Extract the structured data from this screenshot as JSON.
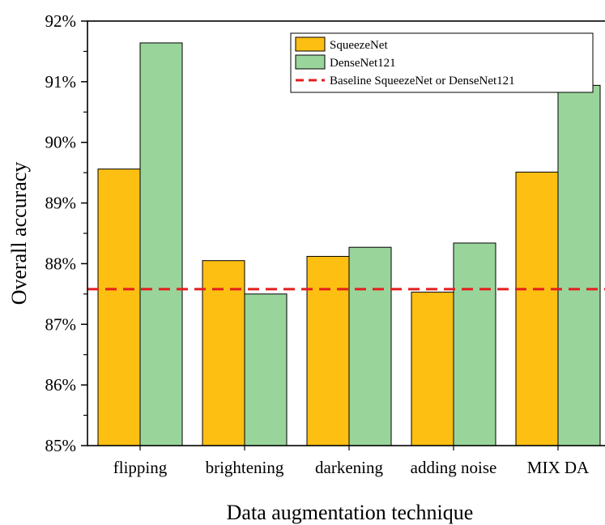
{
  "chart_data": {
    "type": "bar",
    "categories": [
      "flipping",
      "brightening",
      "darkening",
      "adding noise",
      "MIX DA"
    ],
    "series": [
      {
        "name": "SqueezeNet",
        "color": "#FDBF12",
        "values": [
          89.56,
          88.05,
          88.12,
          87.53,
          89.51
        ]
      },
      {
        "name": "DenseNet121",
        "color": "#99D59B",
        "values": [
          91.64,
          87.5,
          88.27,
          88.34,
          90.94
        ]
      }
    ],
    "baseline": {
      "name": "Baseline SqueezeNet or DenseNet121",
      "value": 87.58,
      "color": "#E41E1E",
      "style": "dashed"
    },
    "xlabel": "Data augmentation technique",
    "ylabel": "Overall accuracy",
    "ylim": [
      85,
      92
    ],
    "yticks": [
      85,
      86,
      87,
      88,
      89,
      90,
      91,
      92
    ],
    "ytick_labels": [
      "85%",
      "86%",
      "87%",
      "88%",
      "89%",
      "90%",
      "91%",
      "92%"
    ],
    "grid": false,
    "legend_position": "top-right"
  }
}
